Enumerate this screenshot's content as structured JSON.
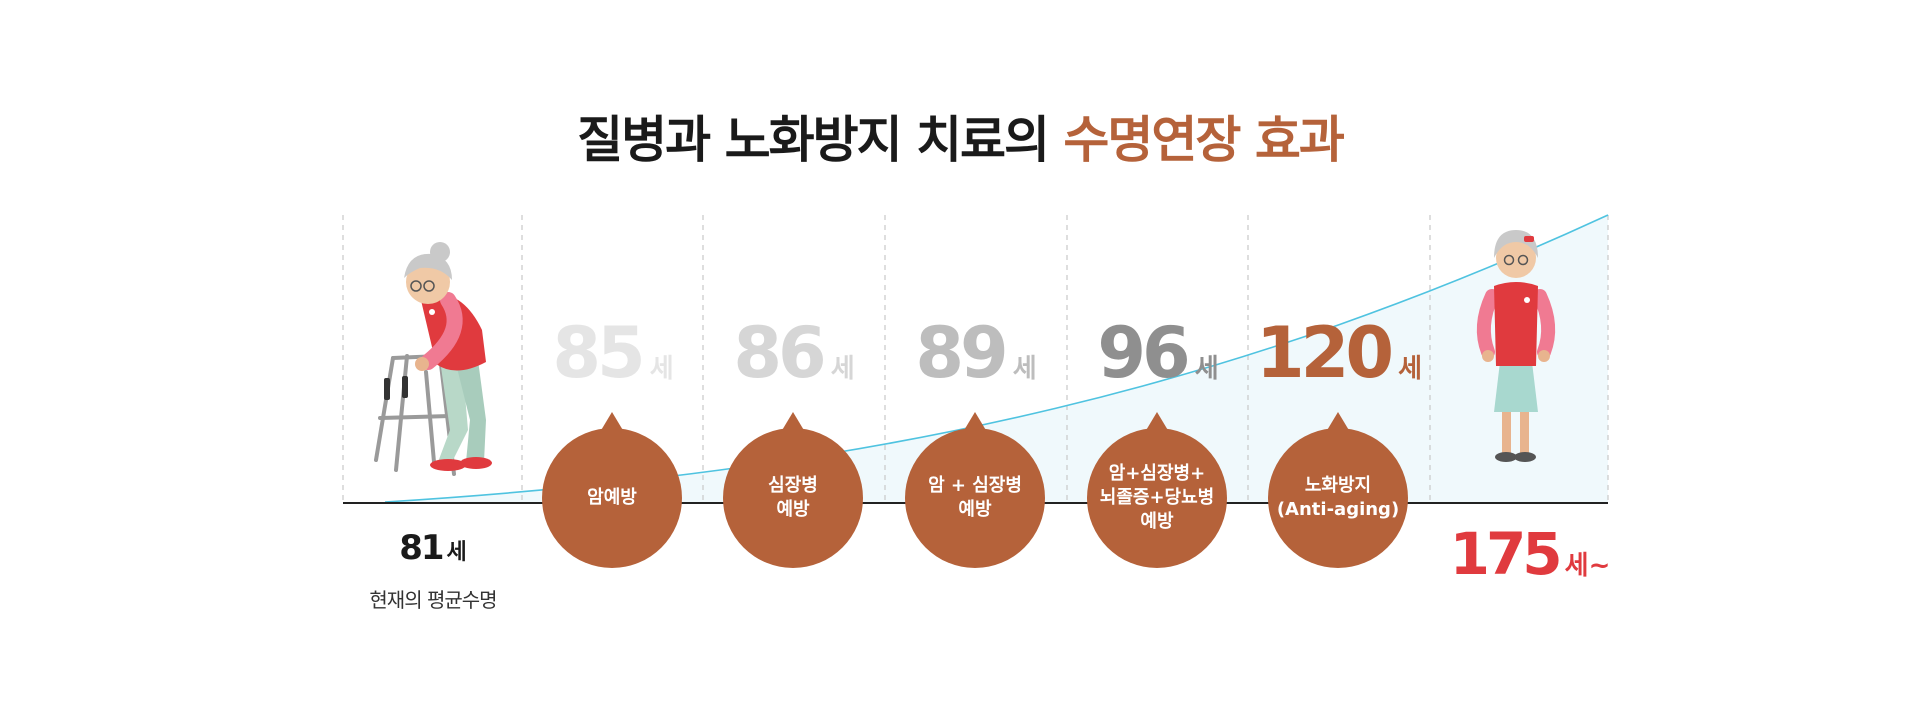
{
  "title": {
    "main": "질병과 노화방지 치료의",
    "accent": "수명연장 효과"
  },
  "current": {
    "age": "81",
    "unit": "세",
    "label": "현재의 평균수명"
  },
  "stages": [
    {
      "age": "85",
      "unit": "세",
      "label": "암예방",
      "color": "#e5e5e5"
    },
    {
      "age": "86",
      "unit": "세",
      "label": "심장병\n예방",
      "color": "#d6d6d6"
    },
    {
      "age": "89",
      "unit": "세",
      "label": "암 + 심장병\n예방",
      "color": "#bdbdbd"
    },
    {
      "age": "96",
      "unit": "세",
      "label": "암+심장병+\n뇌졸증+당뇨병\n예방",
      "color": "#8f8f8f"
    },
    {
      "age": "120",
      "unit": "세",
      "label": "노화방지\n(Anti-aging)",
      "color": "#b5623a"
    }
  ],
  "target": {
    "age": "175",
    "unit": "세~"
  },
  "colors": {
    "accent": "#b5623a",
    "target": "#e03a3e",
    "curve": "#4fc3e0",
    "curve_fill": "#f0f9fc"
  },
  "icons": {
    "left": "elderly-walker-icon",
    "right": "elderly-woman-standing-icon"
  }
}
